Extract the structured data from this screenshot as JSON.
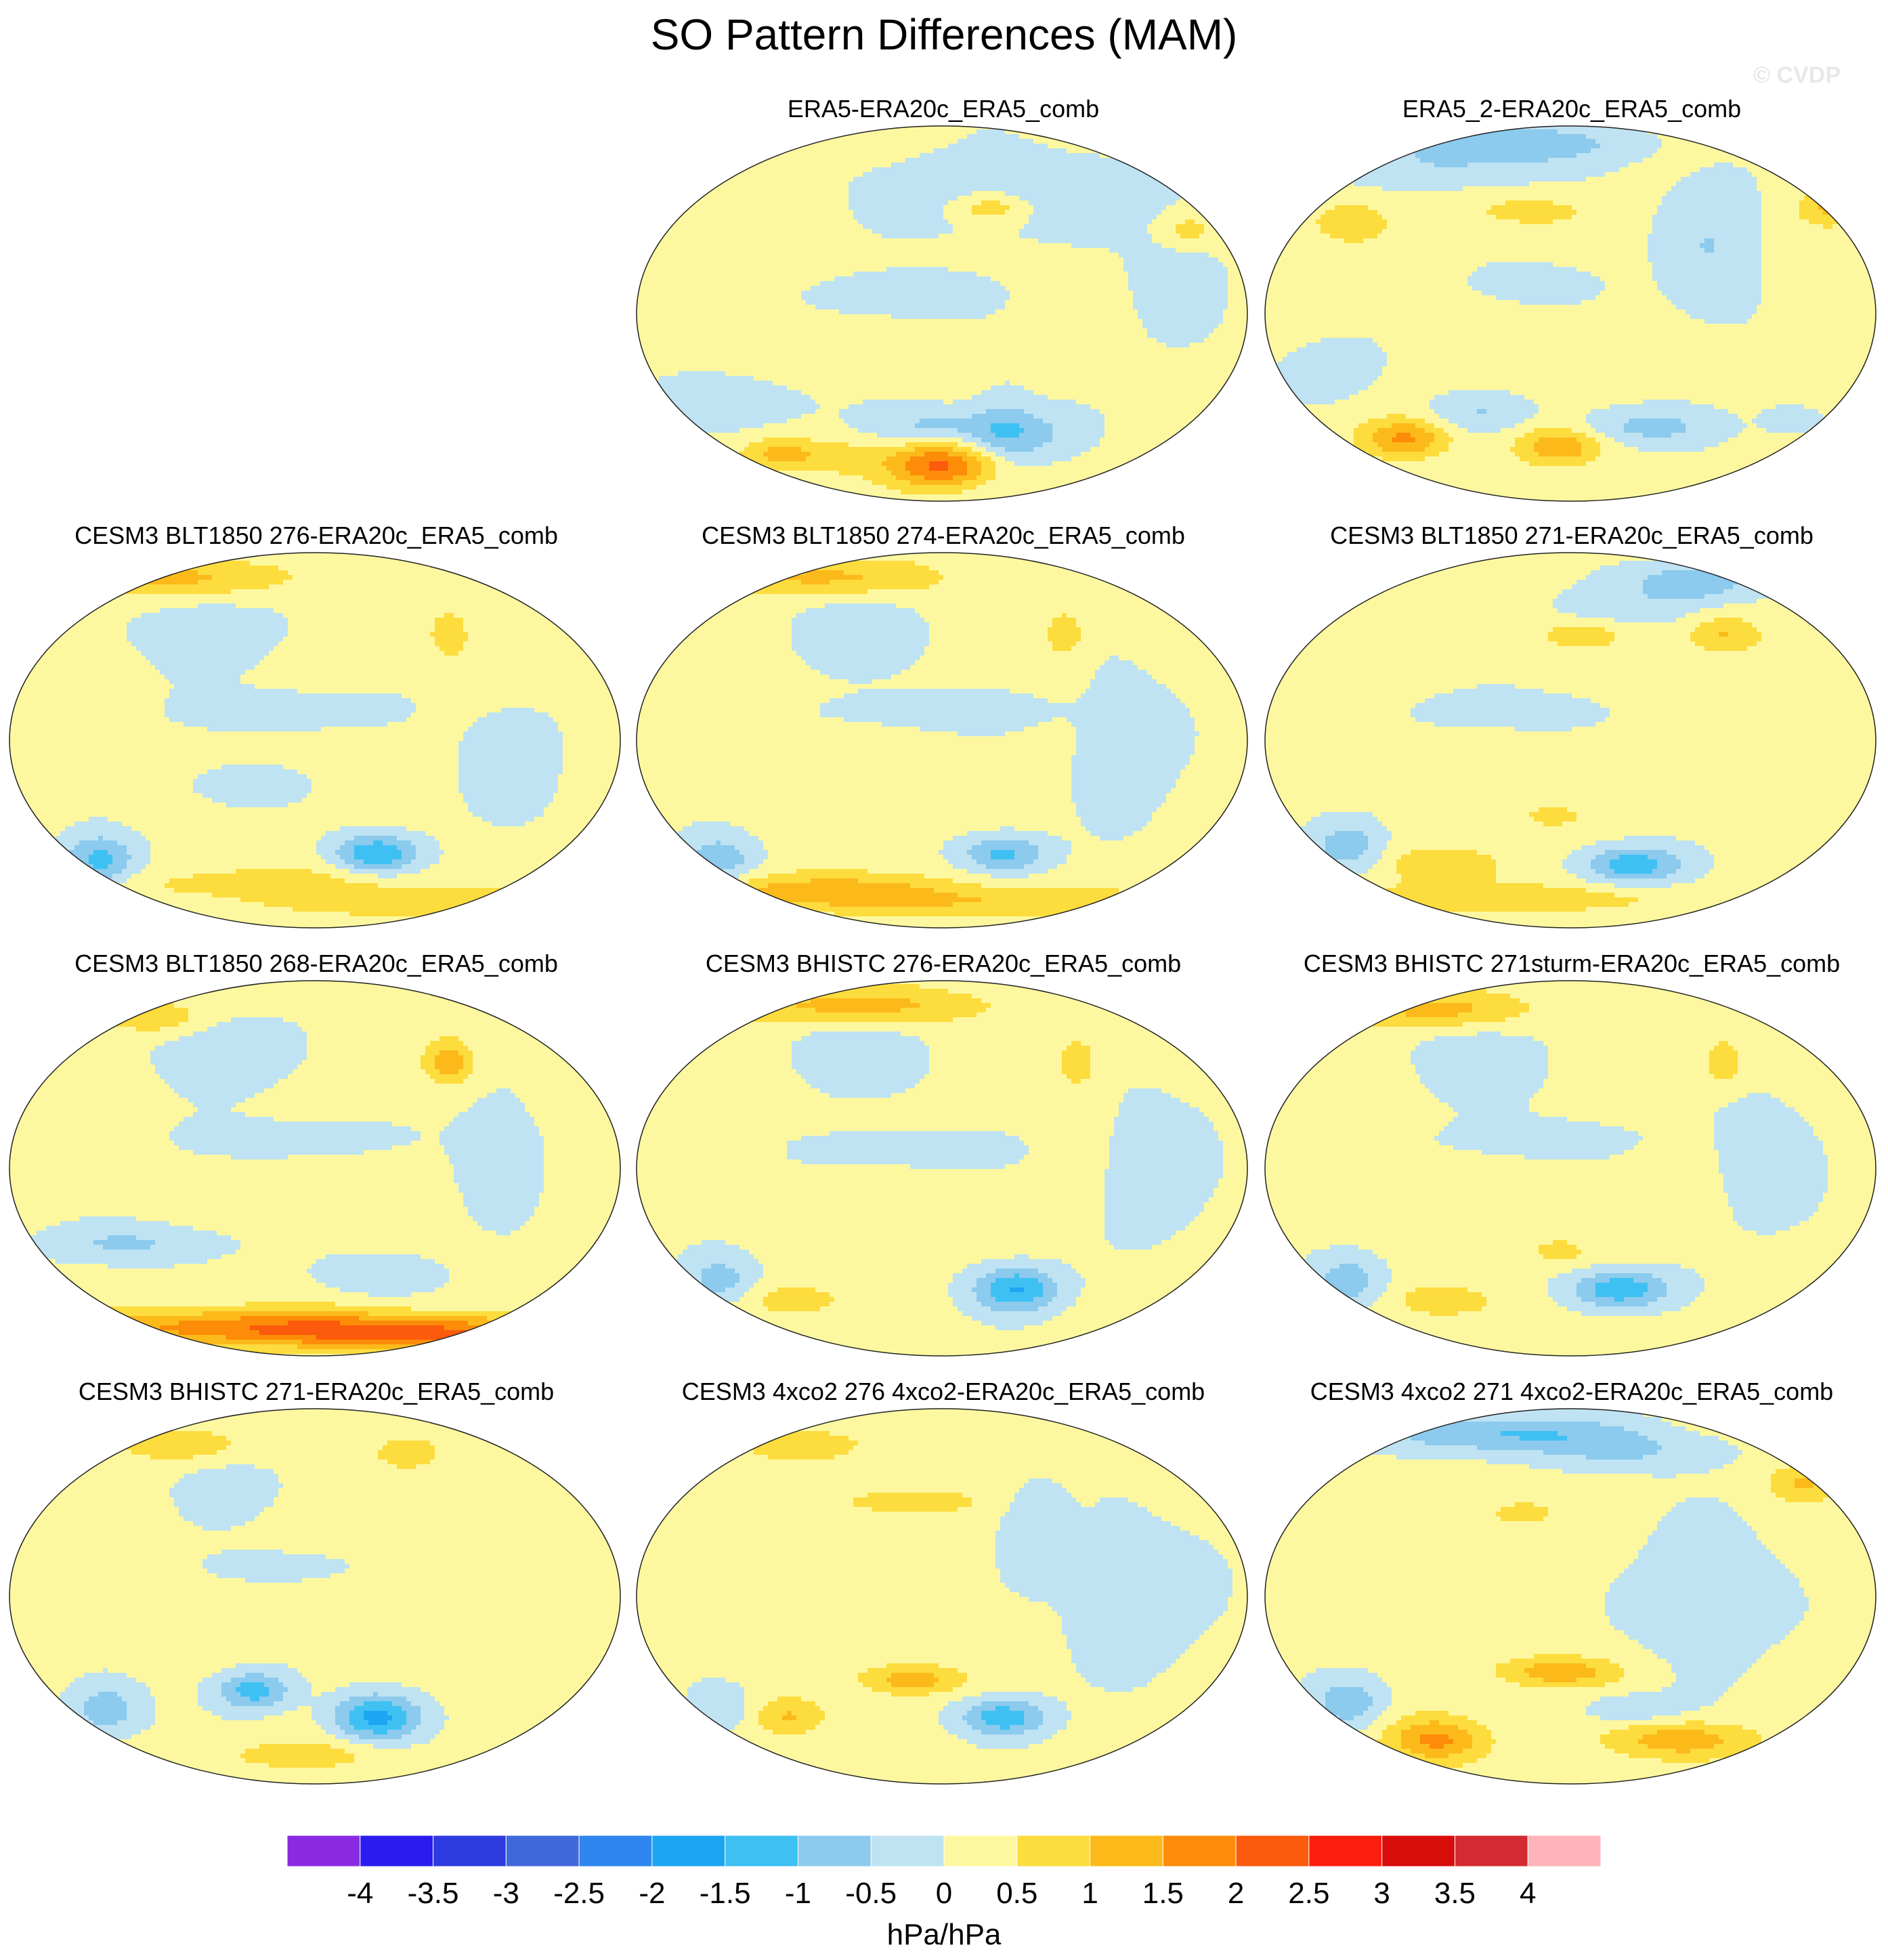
{
  "title": "SO Pattern Differences (MAM)",
  "watermark": "© CVDP",
  "chart_data": {
    "type": "heatmap",
    "projection": "Robinson",
    "grid": "3 rows x 3 columns plus 2 top panels",
    "panels": [
      {
        "title": "ERA5-ERA20c_ERA5_comb",
        "blobs": [
          [
            -0.5,
            0.62,
            0.18,
            0.24,
            0.12
          ],
          [
            0.9,
            0.58,
            0.22,
            0.06,
            0.04
          ],
          [
            0.7,
            0.9,
            0.28,
            0.05,
            0.05
          ],
          [
            -0.6,
            0.44,
            0.45,
            0.12,
            0.06
          ],
          [
            -0.5,
            0.6,
            0.8,
            0.05,
            0.12
          ],
          [
            -0.8,
            0.63,
            0.82,
            0.1,
            0.07
          ],
          [
            -0.5,
            0.15,
            0.74,
            0.15,
            0.07
          ],
          [
            -0.7,
            0.48,
            0.8,
            0.1,
            0.05
          ],
          [
            0.9,
            0.23,
            0.87,
            0.06,
            0.04
          ],
          [
            2.0,
            0.5,
            0.9,
            0.09,
            0.06
          ],
          [
            0.6,
            0.32,
            0.88,
            0.08,
            0.05
          ],
          [
            -0.4,
            0.88,
            0.4,
            0.08,
            0.18
          ]
        ]
      },
      {
        "title": "ERA5_2-ERA20c_ERA5_comb",
        "blobs": [
          [
            -1.1,
            0.4,
            0.05,
            0.18,
            0.05
          ],
          [
            -0.5,
            0.3,
            0.12,
            0.18,
            0.05
          ],
          [
            0.8,
            0.14,
            0.26,
            0.06,
            0.05
          ],
          [
            0.9,
            0.92,
            0.22,
            0.05,
            0.05
          ],
          [
            0.6,
            0.43,
            0.23,
            0.1,
            0.04
          ],
          [
            -0.6,
            0.73,
            0.32,
            0.08,
            0.2
          ],
          [
            -0.5,
            0.45,
            0.42,
            0.1,
            0.05
          ],
          [
            1.4,
            0.23,
            0.83,
            0.07,
            0.05
          ],
          [
            1.3,
            0.48,
            0.85,
            0.07,
            0.05
          ],
          [
            -0.8,
            0.62,
            0.8,
            0.12,
            0.05
          ],
          [
            -0.6,
            0.35,
            0.76,
            0.08,
            0.05
          ],
          [
            -0.5,
            0.86,
            0.78,
            0.05,
            0.04
          ],
          [
            -0.5,
            0.1,
            0.65,
            0.08,
            0.08
          ]
        ]
      },
      {
        "title": "CESM3 BLT1850 276-ERA20c_ERA5_comb",
        "blobs": [
          [
            1.0,
            0.25,
            0.07,
            0.22,
            0.05
          ],
          [
            -0.6,
            0.32,
            0.22,
            0.1,
            0.1
          ],
          [
            0.8,
            0.72,
            0.22,
            0.03,
            0.06
          ],
          [
            -0.6,
            0.45,
            0.42,
            0.15,
            0.05
          ],
          [
            -1.4,
            0.15,
            0.82,
            0.06,
            0.07
          ],
          [
            -1.6,
            0.6,
            0.8,
            0.07,
            0.05
          ],
          [
            -0.6,
            0.38,
            0.62,
            0.08,
            0.05
          ],
          [
            0.6,
            0.4,
            0.88,
            0.25,
            0.05
          ],
          [
            0.8,
            0.68,
            0.93,
            0.2,
            0.04
          ],
          [
            -0.5,
            0.82,
            0.55,
            0.08,
            0.15
          ]
        ]
      },
      {
        "title": "CESM3 BLT1850 274-ERA20c_ERA5_comb",
        "blobs": [
          [
            1.0,
            0.3,
            0.07,
            0.2,
            0.05
          ],
          [
            -0.6,
            0.35,
            0.22,
            0.1,
            0.1
          ],
          [
            0.8,
            0.7,
            0.22,
            0.03,
            0.06
          ],
          [
            -0.6,
            0.5,
            0.42,
            0.15,
            0.05
          ],
          [
            -1.0,
            0.14,
            0.82,
            0.06,
            0.07
          ],
          [
            -1.3,
            0.6,
            0.8,
            0.07,
            0.05
          ],
          [
            1.2,
            0.3,
            0.9,
            0.22,
            0.05
          ],
          [
            0.8,
            0.65,
            0.93,
            0.25,
            0.04
          ],
          [
            -0.6,
            0.8,
            0.52,
            0.08,
            0.18
          ]
        ]
      },
      {
        "title": "CESM3 BLT1850 271-ERA20c_ERA5_comb",
        "blobs": [
          [
            -1.1,
            0.7,
            0.08,
            0.1,
            0.05
          ],
          [
            -0.5,
            0.6,
            0.15,
            0.12,
            0.05
          ],
          [
            0.9,
            0.75,
            0.22,
            0.06,
            0.05
          ],
          [
            0.6,
            0.52,
            0.22,
            0.08,
            0.04
          ],
          [
            -0.5,
            0.4,
            0.42,
            0.15,
            0.05
          ],
          [
            -1.0,
            0.14,
            0.78,
            0.06,
            0.07
          ],
          [
            -1.5,
            0.6,
            0.83,
            0.08,
            0.05
          ],
          [
            0.8,
            0.3,
            0.83,
            0.1,
            0.05
          ],
          [
            0.8,
            0.4,
            0.92,
            0.25,
            0.04
          ],
          [
            0.6,
            0.47,
            0.7,
            0.05,
            0.03
          ]
        ]
      },
      {
        "title": "CESM3 BLT1850 268-ERA20c_ERA5_comb",
        "blobs": [
          [
            0.9,
            0.23,
            0.1,
            0.08,
            0.04
          ],
          [
            -0.6,
            0.35,
            0.2,
            0.1,
            0.1
          ],
          [
            1.2,
            0.72,
            0.22,
            0.04,
            0.06
          ],
          [
            -0.5,
            0.45,
            0.42,
            0.15,
            0.05
          ],
          [
            -0.7,
            0.2,
            0.7,
            0.15,
            0.05
          ],
          [
            -0.6,
            0.6,
            0.78,
            0.1,
            0.05
          ],
          [
            1.6,
            0.4,
            0.92,
            0.35,
            0.05
          ],
          [
            1.4,
            0.7,
            0.94,
            0.25,
            0.04
          ],
          [
            -0.4,
            0.8,
            0.45,
            0.08,
            0.18
          ]
        ]
      },
      {
        "title": "CESM3 BHISTC 276-ERA20c_ERA5_comb",
        "blobs": [
          [
            1.1,
            0.35,
            0.07,
            0.22,
            0.05
          ],
          [
            -0.6,
            0.35,
            0.2,
            0.1,
            0.1
          ],
          [
            0.9,
            0.72,
            0.22,
            0.03,
            0.06
          ],
          [
            -0.5,
            0.45,
            0.45,
            0.15,
            0.05
          ],
          [
            -0.9,
            0.14,
            0.8,
            0.06,
            0.07
          ],
          [
            -1.7,
            0.62,
            0.82,
            0.07,
            0.06
          ],
          [
            0.6,
            0.25,
            0.85,
            0.1,
            0.05
          ],
          [
            -0.6,
            0.85,
            0.5,
            0.08,
            0.18
          ]
        ]
      },
      {
        "title": "CESM3 BHISTC 271sturm-ERA20c_ERA5_comb",
        "blobs": [
          [
            1.1,
            0.27,
            0.08,
            0.15,
            0.05
          ],
          [
            -0.6,
            0.35,
            0.22,
            0.1,
            0.1
          ],
          [
            0.8,
            0.75,
            0.22,
            0.03,
            0.06
          ],
          [
            -0.5,
            0.45,
            0.42,
            0.15,
            0.05
          ],
          [
            -1.0,
            0.14,
            0.8,
            0.06,
            0.07
          ],
          [
            -1.6,
            0.58,
            0.82,
            0.08,
            0.05
          ],
          [
            0.6,
            0.3,
            0.85,
            0.1,
            0.05
          ],
          [
            0.7,
            0.48,
            0.72,
            0.04,
            0.03
          ],
          [
            -0.5,
            0.82,
            0.48,
            0.08,
            0.18
          ]
        ]
      },
      {
        "title": "CESM3 BHISTC 271-ERA20c_ERA5_comb",
        "blobs": [
          [
            0.8,
            0.27,
            0.1,
            0.1,
            0.04
          ],
          [
            -0.5,
            0.35,
            0.22,
            0.08,
            0.08
          ],
          [
            0.7,
            0.65,
            0.12,
            0.05,
            0.04
          ],
          [
            -0.5,
            0.45,
            0.42,
            0.1,
            0.04
          ],
          [
            -1.0,
            0.16,
            0.8,
            0.06,
            0.07
          ],
          [
            -1.4,
            0.4,
            0.75,
            0.06,
            0.05
          ],
          [
            -1.8,
            0.6,
            0.82,
            0.07,
            0.06
          ],
          [
            0.6,
            0.48,
            0.92,
            0.15,
            0.04
          ]
        ]
      },
      {
        "title": "CESM3 4xco2 276 4xco2-ERA20c_ERA5_comb",
        "blobs": [
          [
            0.8,
            0.27,
            0.1,
            0.1,
            0.04
          ],
          [
            0.9,
            0.45,
            0.25,
            0.1,
            0.03
          ],
          [
            -0.6,
            0.65,
            0.32,
            0.05,
            0.12
          ],
          [
            -0.5,
            0.82,
            0.5,
            0.12,
            0.2
          ],
          [
            1.2,
            0.45,
            0.72,
            0.08,
            0.04
          ],
          [
            -1.5,
            0.6,
            0.82,
            0.07,
            0.05
          ],
          [
            0.9,
            0.25,
            0.82,
            0.06,
            0.05
          ],
          [
            -0.6,
            0.14,
            0.8,
            0.05,
            0.06
          ]
        ]
      },
      {
        "title": "CESM3 4xco2 271 4xco2-ERA20c_ERA5_comb",
        "blobs": [
          [
            -1.2,
            0.4,
            0.07,
            0.2,
            0.05
          ],
          [
            -0.6,
            0.6,
            0.12,
            0.15,
            0.05
          ],
          [
            0.9,
            0.88,
            0.2,
            0.06,
            0.05
          ],
          [
            0.8,
            0.42,
            0.28,
            0.05,
            0.03
          ],
          [
            -0.5,
            0.72,
            0.5,
            0.12,
            0.2
          ],
          [
            1.2,
            0.48,
            0.7,
            0.1,
            0.04
          ],
          [
            -1.0,
            0.14,
            0.78,
            0.06,
            0.07
          ],
          [
            1.5,
            0.28,
            0.88,
            0.08,
            0.06
          ],
          [
            1.2,
            0.68,
            0.88,
            0.12,
            0.05
          ],
          [
            -0.6,
            0.6,
            0.8,
            0.08,
            0.04
          ]
        ]
      }
    ],
    "blob_fields": [
      "value_hPa",
      "center_x_fraction",
      "center_y_fraction",
      "spread_x",
      "spread_y"
    ],
    "colorbar": {
      "levels": [
        -4,
        -3.5,
        -3,
        -2.5,
        -2,
        -1.5,
        -1,
        -0.5,
        0,
        0.5,
        1,
        1.5,
        2,
        2.5,
        3,
        3.5,
        4
      ],
      "tick_labels": [
        "-4",
        "-3.5",
        "-3",
        "-2.5",
        "-2",
        "-1.5",
        "-1",
        "-0.5",
        "0",
        "0.5",
        "1",
        "1.5",
        "2",
        "2.5",
        "3",
        "3.5",
        "4"
      ],
      "colors": [
        "#8a2be2",
        "#2a1cf0",
        "#2d3be0",
        "#3f69db",
        "#2f86ee",
        "#1ca6f2",
        "#3ec1f2",
        "#8ccaee",
        "#bfe3f2",
        "#fdf8a0",
        "#fddc3e",
        "#fcba1a",
        "#fd8c08",
        "#fc5a0c",
        "#fb1e0e",
        "#d90c0c",
        "#d42b32",
        "#feb4b8"
      ],
      "units": "hPa/hPa"
    }
  }
}
